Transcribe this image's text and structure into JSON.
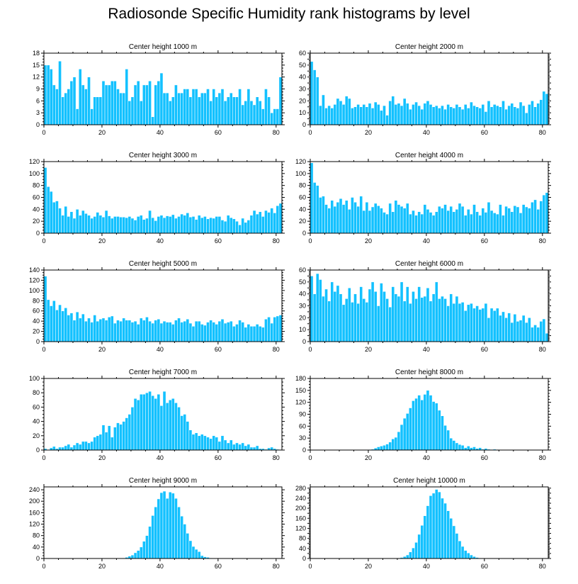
{
  "title": "Radiosonde Specific Humidity rank histograms by level",
  "colors": {
    "bar": "#13c1ff",
    "bar_edge": "#ffffff",
    "axis": "#000000",
    "background": "#ffffff"
  },
  "chart_data": [
    {
      "type": "bar",
      "title": "Center height 1000 m",
      "xlim": [
        0,
        82
      ],
      "ylim": [
        0,
        18
      ],
      "xticks": [
        0,
        20,
        40,
        60,
        80
      ],
      "yticks": [
        0,
        3,
        6,
        9,
        12,
        15,
        18
      ],
      "values": [
        15,
        15,
        14,
        10,
        9,
        16,
        7,
        8,
        9,
        11,
        12,
        4,
        14,
        10,
        9,
        12,
        4,
        7,
        7,
        7,
        11,
        10,
        10,
        11,
        11,
        9,
        8,
        8,
        14,
        6,
        7,
        10,
        11,
        6,
        10,
        10,
        11,
        2,
        10,
        11,
        13,
        8,
        8,
        6,
        7,
        10,
        8,
        8,
        9,
        9,
        7,
        9,
        9,
        7,
        8,
        8,
        9,
        6,
        9,
        7,
        8,
        9,
        6,
        7,
        8,
        7,
        7,
        9,
        5,
        6,
        9,
        6,
        5,
        7,
        6,
        4,
        9,
        7,
        3,
        4,
        4,
        12
      ]
    },
    {
      "type": "bar",
      "title": "Center height 2000 m",
      "xlim": [
        0,
        82
      ],
      "ylim": [
        0,
        60
      ],
      "xticks": [
        0,
        20,
        40,
        60,
        80
      ],
      "yticks": [
        0,
        5,
        10,
        15,
        20,
        25,
        30,
        35,
        40,
        45,
        50,
        55,
        60
      ],
      "ytick_labels": [
        "0",
        "",
        "10",
        "",
        "20",
        "",
        "30",
        "",
        "40",
        "",
        "50",
        "",
        "60"
      ],
      "values": [
        53,
        46,
        40,
        16,
        25,
        14,
        16,
        14,
        17,
        22,
        20,
        17,
        24,
        22,
        14,
        15,
        17,
        15,
        17,
        15,
        18,
        14,
        19,
        17,
        12,
        16,
        8,
        20,
        24,
        17,
        18,
        16,
        22,
        18,
        13,
        17,
        19,
        16,
        13,
        18,
        20,
        17,
        15,
        16,
        14,
        16,
        13,
        17,
        15,
        14,
        17,
        15,
        13,
        17,
        14,
        19,
        16,
        15,
        14,
        17,
        11,
        20,
        15,
        17,
        16,
        15,
        20,
        13,
        16,
        18,
        15,
        14,
        19,
        16,
        10,
        17,
        20,
        15,
        18,
        21,
        28,
        26
      ]
    },
    {
      "type": "bar",
      "title": "Center height 3000 m",
      "xlim": [
        0,
        82
      ],
      "ylim": [
        0,
        120
      ],
      "xticks": [
        0,
        20,
        40,
        60,
        80
      ],
      "yticks": [
        0,
        20,
        40,
        60,
        80,
        100,
        120
      ],
      "values": [
        110,
        78,
        70,
        52,
        54,
        42,
        30,
        45,
        28,
        36,
        25,
        40,
        30,
        38,
        33,
        30,
        25,
        28,
        35,
        30,
        27,
        38,
        29,
        25,
        28,
        28,
        27,
        27,
        26,
        28,
        25,
        22,
        28,
        30,
        23,
        25,
        38,
        26,
        21,
        28,
        30,
        26,
        29,
        28,
        31,
        25,
        28,
        32,
        30,
        34,
        27,
        28,
        23,
        30,
        26,
        28,
        24,
        26,
        25,
        28,
        28,
        22,
        20,
        30,
        26,
        24,
        20,
        14,
        25,
        18,
        22,
        30,
        38,
        32,
        36,
        28,
        38,
        35,
        42,
        34,
        46,
        50
      ]
    },
    {
      "type": "bar",
      "title": "Center height 4000 m",
      "xlim": [
        0,
        82
      ],
      "ylim": [
        0,
        120
      ],
      "xticks": [
        0,
        20,
        40,
        60,
        80
      ],
      "yticks": [
        0,
        20,
        40,
        60,
        80,
        100,
        120
      ],
      "values": [
        118,
        85,
        80,
        60,
        62,
        48,
        42,
        55,
        45,
        52,
        58,
        48,
        55,
        40,
        60,
        52,
        45,
        62,
        38,
        52,
        38,
        44,
        50,
        46,
        42,
        35,
        32,
        50,
        36,
        55,
        48,
        45,
        42,
        50,
        32,
        38,
        30,
        36,
        32,
        48,
        40,
        35,
        30,
        36,
        45,
        42,
        48,
        38,
        45,
        36,
        40,
        50,
        45,
        30,
        40,
        32,
        48,
        36,
        30,
        42,
        35,
        52,
        38,
        34,
        32,
        48,
        30,
        45,
        42,
        36,
        46,
        44,
        34,
        48,
        44,
        42,
        52,
        56,
        40,
        54,
        64,
        68
      ]
    },
    {
      "type": "bar",
      "title": "Center height 5000 m",
      "xlim": [
        0,
        82
      ],
      "ylim": [
        0,
        140
      ],
      "xticks": [
        0,
        20,
        40,
        60,
        80
      ],
      "yticks": [
        0,
        20,
        40,
        60,
        80,
        100,
        120,
        140
      ],
      "values": [
        128,
        82,
        70,
        80,
        62,
        72,
        60,
        66,
        52,
        56,
        42,
        58,
        46,
        54,
        40,
        46,
        38,
        52,
        40,
        44,
        46,
        42,
        48,
        50,
        36,
        42,
        40,
        46,
        42,
        42,
        38,
        40,
        34,
        46,
        42,
        48,
        40,
        36,
        42,
        44,
        36,
        40,
        38,
        38,
        34,
        42,
        46,
        38,
        40,
        44,
        36,
        30,
        40,
        40,
        34,
        32,
        38,
        42,
        38,
        34,
        40,
        44,
        36,
        38,
        40,
        30,
        34,
        42,
        38,
        28,
        34,
        30,
        30,
        34,
        30,
        28,
        44,
        48,
        36,
        48,
        50,
        52
      ]
    },
    {
      "type": "bar",
      "title": "Center height 6000 m",
      "xlim": [
        0,
        82
      ],
      "ylim": [
        0,
        60
      ],
      "xticks": [
        0,
        20,
        40,
        60,
        80
      ],
      "yticks": [
        0,
        5,
        10,
        15,
        20,
        25,
        30,
        35,
        40,
        45,
        50,
        55,
        60
      ],
      "ytick_labels": [
        "0",
        "",
        "10",
        "",
        "20",
        "",
        "30",
        "",
        "40",
        "",
        "50",
        "",
        "60"
      ],
      "values": [
        55,
        40,
        57,
        52,
        38,
        44,
        34,
        50,
        42,
        47,
        40,
        31,
        36,
        45,
        33,
        40,
        32,
        46,
        36,
        33,
        44,
        50,
        42,
        30,
        49,
        42,
        36,
        29,
        46,
        40,
        38,
        50,
        34,
        46,
        32,
        42,
        36,
        46,
        37,
        38,
        45,
        34,
        40,
        50,
        36,
        38,
        36,
        30,
        40,
        32,
        38,
        32,
        33,
        26,
        31,
        32,
        28,
        30,
        27,
        28,
        32,
        20,
        28,
        26,
        28,
        22,
        25,
        20,
        24,
        16,
        23,
        17,
        18,
        22,
        16,
        20,
        12,
        14,
        12,
        17,
        19,
        7
      ]
    },
    {
      "type": "bar",
      "title": "Center height 7000 m",
      "xlim": [
        0,
        82
      ],
      "ylim": [
        0,
        100
      ],
      "xticks": [
        0,
        20,
        40,
        60,
        80
      ],
      "yticks": [
        0,
        20,
        40,
        60,
        80,
        100
      ],
      "values": [
        2,
        0,
        3,
        5,
        2,
        4,
        4,
        6,
        8,
        4,
        7,
        10,
        8,
        12,
        12,
        10,
        12,
        18,
        20,
        22,
        35,
        25,
        34,
        18,
        32,
        38,
        36,
        40,
        45,
        50,
        60,
        72,
        70,
        78,
        78,
        80,
        82,
        76,
        72,
        78,
        62,
        82,
        66,
        70,
        72,
        66,
        60,
        48,
        50,
        40,
        28,
        22,
        24,
        20,
        22,
        20,
        18,
        16,
        20,
        18,
        12,
        20,
        14,
        10,
        14,
        8,
        10,
        8,
        10,
        6,
        8,
        4,
        4,
        6,
        2,
        2,
        1,
        3,
        4,
        2,
        1,
        0
      ]
    },
    {
      "type": "bar",
      "title": "Center height 8000 m",
      "xlim": [
        0,
        82
      ],
      "ylim": [
        0,
        180
      ],
      "xticks": [
        0,
        20,
        40,
        60,
        80
      ],
      "yticks": [
        0,
        30,
        60,
        90,
        120,
        150,
        180
      ],
      "values": [
        0,
        0,
        0,
        0,
        0,
        0,
        0,
        0,
        0,
        0,
        0,
        0,
        0,
        0,
        0,
        0,
        0,
        0,
        0,
        0,
        1,
        2,
        5,
        8,
        10,
        12,
        15,
        20,
        28,
        32,
        46,
        64,
        80,
        92,
        106,
        124,
        130,
        138,
        126,
        140,
        150,
        138,
        122,
        118,
        100,
        86,
        62,
        50,
        30,
        24,
        18,
        14,
        12,
        6,
        10,
        6,
        8,
        4,
        6,
        2,
        4,
        2,
        1,
        2,
        1,
        0,
        0,
        0,
        0,
        0,
        0,
        0,
        0,
        0,
        0,
        0,
        0,
        0,
        0,
        0,
        0,
        0
      ]
    },
    {
      "type": "bar",
      "title": "Center height 9000 m",
      "xlim": [
        0,
        82
      ],
      "ylim": [
        0,
        250
      ],
      "xticks": [
        0,
        20,
        40,
        60,
        80
      ],
      "yticks": [
        0,
        40,
        80,
        120,
        160,
        200,
        240
      ],
      "values": [
        0,
        0,
        0,
        0,
        0,
        0,
        0,
        0,
        0,
        0,
        0,
        0,
        0,
        0,
        0,
        0,
        0,
        0,
        0,
        0,
        0,
        0,
        0,
        0,
        0,
        0,
        0,
        2,
        4,
        8,
        12,
        20,
        28,
        40,
        60,
        80,
        112,
        150,
        180,
        208,
        230,
        235,
        210,
        232,
        228,
        210,
        180,
        148,
        120,
        88,
        62,
        42,
        32,
        24,
        10,
        6,
        4,
        2,
        1,
        0,
        0,
        0,
        0,
        0,
        0,
        0,
        0,
        0,
        0,
        0,
        0,
        0,
        0,
        0,
        0,
        0,
        0,
        0,
        0,
        0,
        0,
        0
      ]
    },
    {
      "type": "bar",
      "title": "Center height 10000 m",
      "xlim": [
        0,
        82
      ],
      "ylim": [
        0,
        285
      ],
      "xticks": [
        0,
        20,
        40,
        60,
        80
      ],
      "yticks": [
        0,
        20,
        40,
        60,
        80,
        100,
        120,
        140,
        160,
        180,
        200,
        220,
        240,
        260,
        280
      ],
      "ytick_labels": [
        "0",
        "",
        "40",
        "",
        "80",
        "",
        "120",
        "",
        "160",
        "",
        "200",
        "",
        "240",
        "",
        "280"
      ],
      "values": [
        0,
        0,
        0,
        0,
        0,
        0,
        0,
        0,
        0,
        0,
        0,
        0,
        0,
        0,
        0,
        0,
        0,
        0,
        0,
        0,
        0,
        0,
        0,
        0,
        0,
        0,
        0,
        0,
        0,
        1,
        2,
        4,
        8,
        14,
        26,
        42,
        64,
        96,
        132,
        170,
        210,
        250,
        260,
        275,
        265,
        240,
        220,
        190,
        160,
        130,
        100,
        70,
        48,
        32,
        22,
        14,
        8,
        4,
        2,
        1,
        0,
        0,
        0,
        0,
        0,
        0,
        0,
        0,
        0,
        0,
        0,
        0,
        0,
        0,
        0,
        0,
        0,
        0,
        0,
        0,
        0,
        0
      ]
    }
  ]
}
